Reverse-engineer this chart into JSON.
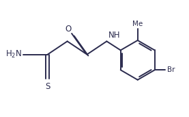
{
  "background_color": "#ffffff",
  "line_color": "#2b2b4e",
  "line_width": 1.4,
  "font_size": 8.5,
  "figure_width": 2.77,
  "figure_height": 1.71,
  "dpi": 100,
  "xlim": [
    0,
    10
  ],
  "ylim": [
    0,
    6.17
  ]
}
